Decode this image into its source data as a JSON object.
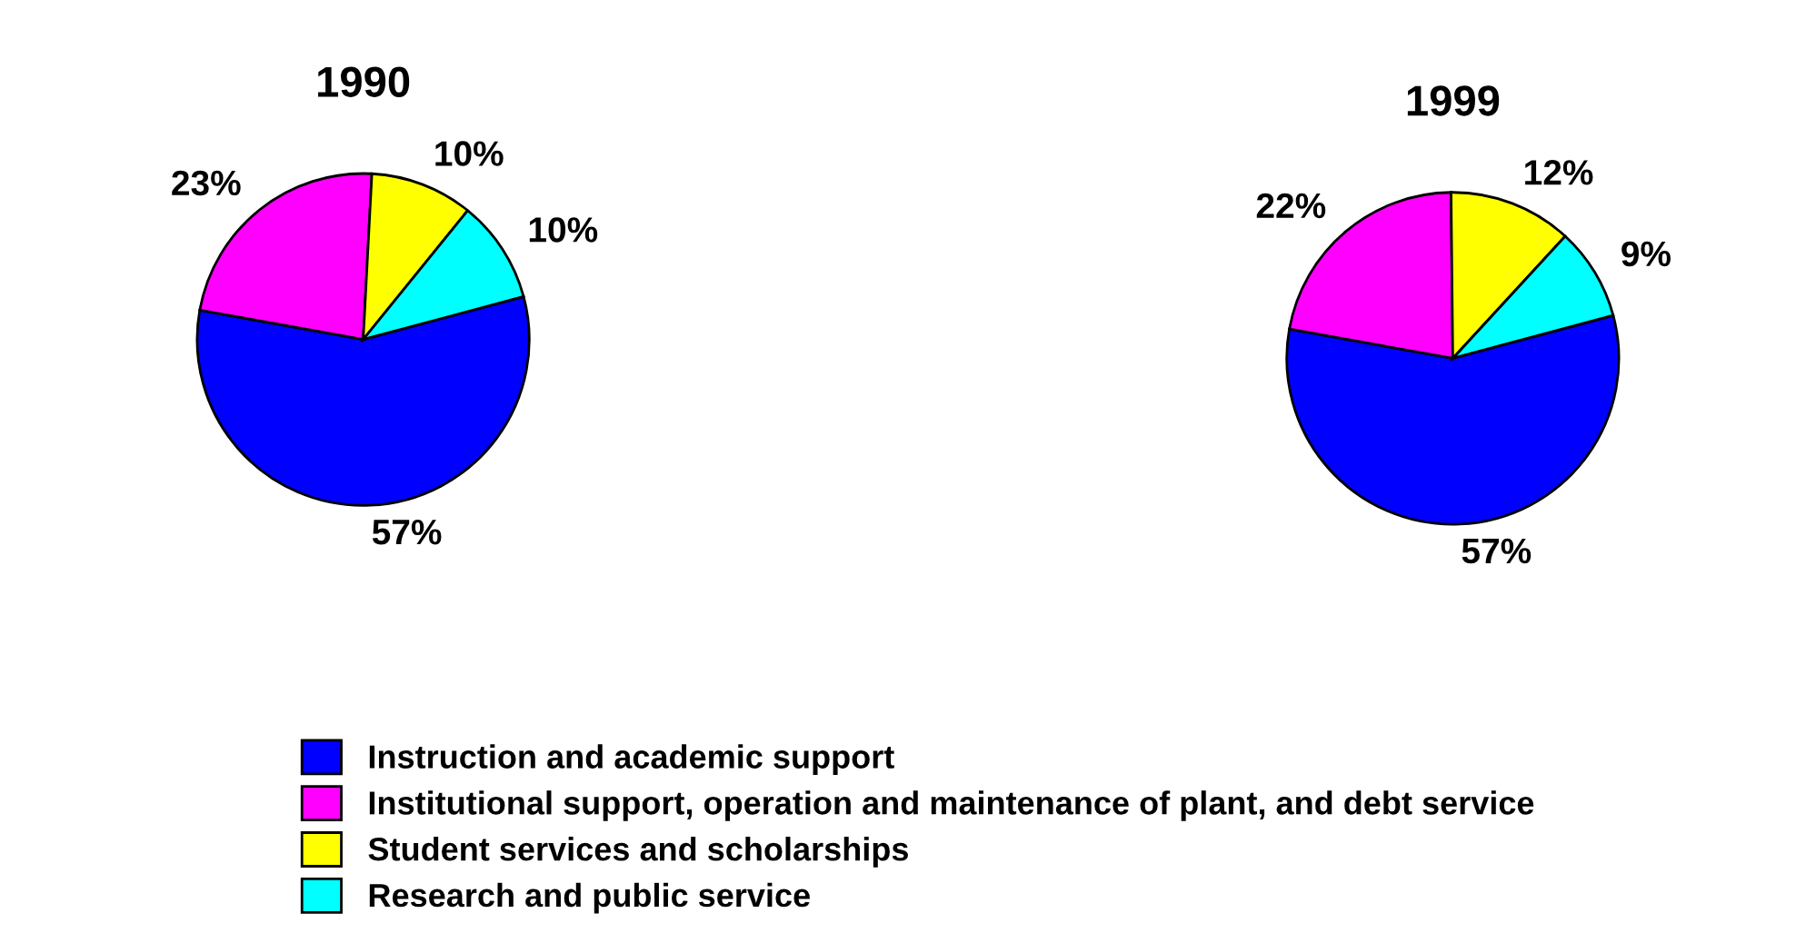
{
  "chart_data": [
    {
      "type": "pie",
      "title": "1990",
      "categories": [
        "Instruction and academic support",
        "Institutional support, operation and maintenance of plant, and debt service",
        "Student services and scholarships",
        "Research and public service"
      ],
      "values": [
        57,
        23,
        10,
        10
      ],
      "value_labels": [
        "57%",
        "23%",
        "10%",
        "10%"
      ],
      "colors": [
        "#0000ff",
        "#ff00ff",
        "#ffff00",
        "#00ffff"
      ],
      "legend": "bottom"
    },
    {
      "type": "pie",
      "title": "1999",
      "values": [
        57,
        22,
        12,
        9
      ],
      "value_labels": [
        "57%",
        "22%",
        "12%",
        "9%"
      ],
      "colors": [
        "#0000ff",
        "#ff00ff",
        "#ffff00",
        "#00ffff"
      ]
    }
  ]
}
